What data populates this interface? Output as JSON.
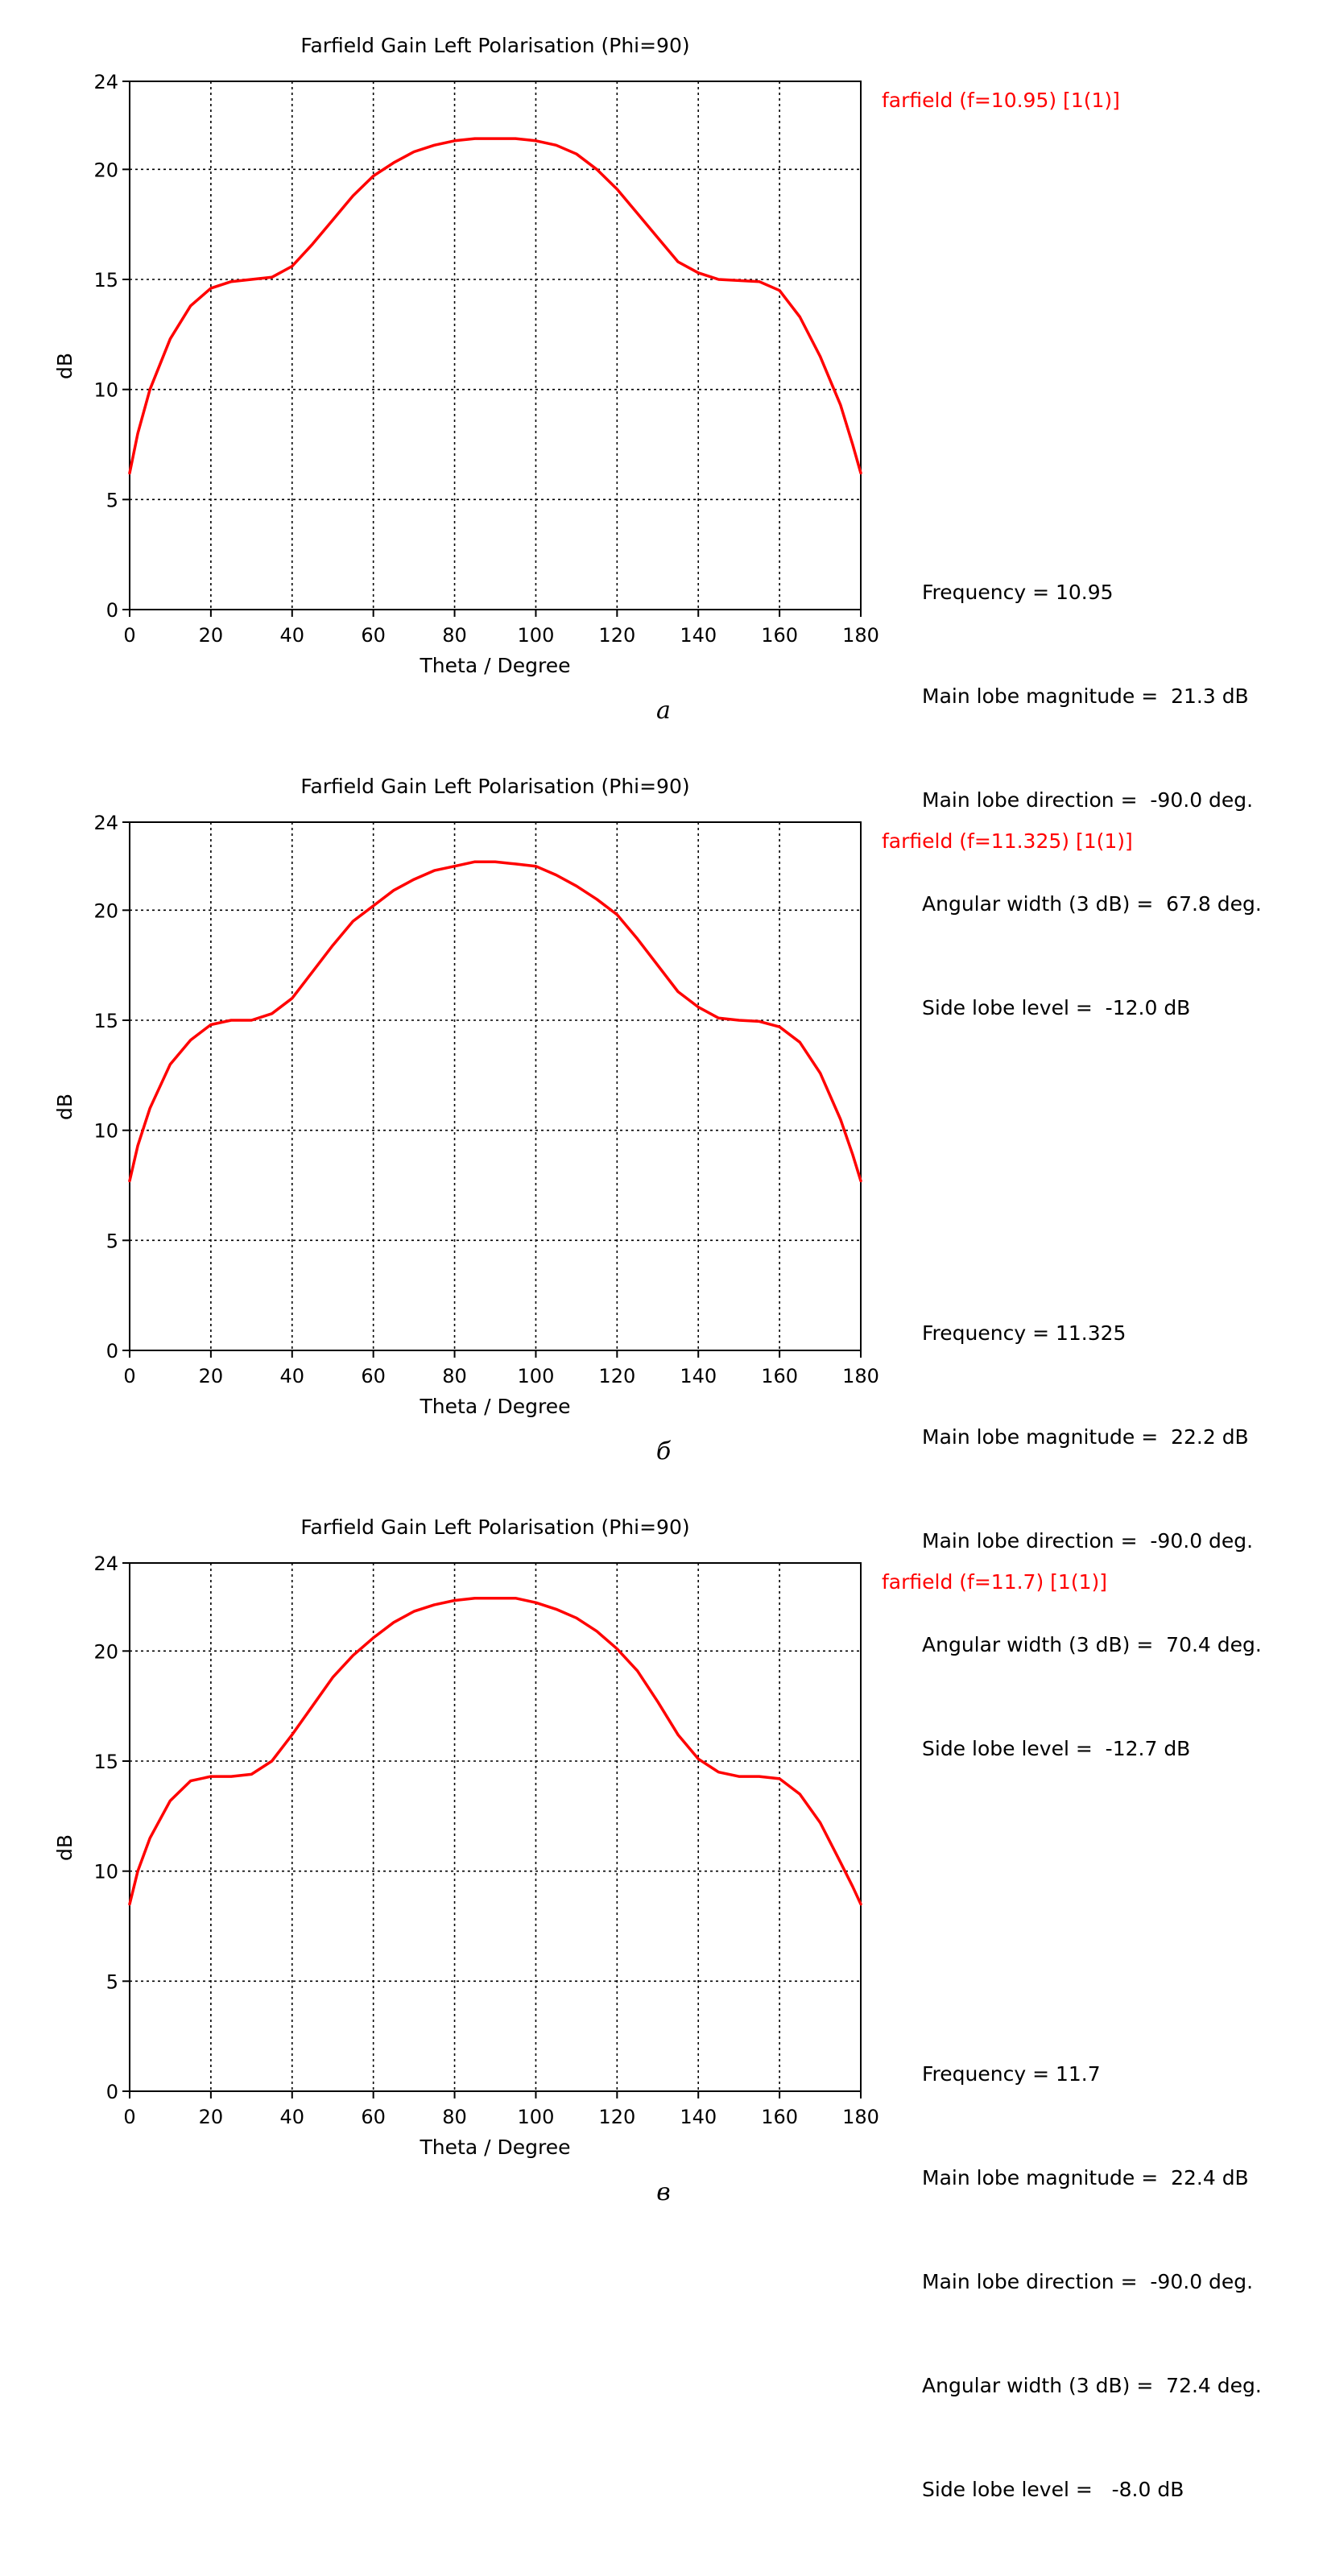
{
  "chart_data": [
    {
      "type": "line",
      "title": "Farfield Gain Left Polarisation (Phi=90)",
      "xlabel": "Theta / Degree",
      "ylabel": "dB",
      "xlim": [
        0,
        180
      ],
      "ylim": [
        0,
        24
      ],
      "xticks": [
        0,
        20,
        40,
        60,
        80,
        100,
        120,
        140,
        160,
        180
      ],
      "yticks": [
        0,
        5,
        10,
        15,
        20,
        24
      ],
      "grid": true,
      "legend_position": "top-right",
      "series": [
        {
          "name": "farfield (f=10.95) [1(1)]",
          "color": "#ff0000",
          "x": [
            0,
            2,
            5,
            10,
            15,
            20,
            25,
            30,
            35,
            40,
            45,
            50,
            55,
            60,
            65,
            70,
            75,
            80,
            85,
            90,
            95,
            100,
            105,
            110,
            115,
            120,
            125,
            130,
            135,
            140,
            145,
            150,
            155,
            160,
            165,
            170,
            175,
            178,
            180
          ],
          "y": [
            6.2,
            8.0,
            10.0,
            12.3,
            13.8,
            14.6,
            14.9,
            15.0,
            15.1,
            15.6,
            16.6,
            17.7,
            18.8,
            19.7,
            20.3,
            20.8,
            21.1,
            21.3,
            21.4,
            21.4,
            21.4,
            21.3,
            21.1,
            20.7,
            20.0,
            19.1,
            18.0,
            16.9,
            15.8,
            15.3,
            15.0,
            14.95,
            14.9,
            14.5,
            13.3,
            11.5,
            9.3,
            7.5,
            6.2
          ]
        }
      ],
      "stats": [
        "Frequency = 10.95",
        "Main lobe magnitude =  21.3 dB",
        "Main lobe direction =  -90.0 deg.",
        "Angular width (3 dB) =  67.8 deg.",
        "Side lobe level =  -12.0 dB"
      ],
      "caption": "a"
    },
    {
      "type": "line",
      "title": "Farfield Gain Left Polarisation (Phi=90)",
      "xlabel": "Theta / Degree",
      "ylabel": "dB",
      "xlim": [
        0,
        180
      ],
      "ylim": [
        0,
        24
      ],
      "xticks": [
        0,
        20,
        40,
        60,
        80,
        100,
        120,
        140,
        160,
        180
      ],
      "yticks": [
        0,
        5,
        10,
        15,
        20,
        24
      ],
      "grid": true,
      "legend_position": "top-right",
      "series": [
        {
          "name": "farfield (f=11.325) [1(1)]",
          "color": "#ff0000",
          "x": [
            0,
            2,
            5,
            10,
            15,
            20,
            25,
            30,
            35,
            40,
            45,
            50,
            55,
            60,
            65,
            70,
            75,
            80,
            85,
            90,
            95,
            100,
            105,
            110,
            115,
            120,
            125,
            130,
            135,
            140,
            145,
            150,
            155,
            160,
            165,
            170,
            175,
            178,
            180
          ],
          "y": [
            7.7,
            9.3,
            11.0,
            13.0,
            14.1,
            14.8,
            15.0,
            15.0,
            15.3,
            16.0,
            17.2,
            18.4,
            19.5,
            20.2,
            20.9,
            21.4,
            21.8,
            22.0,
            22.2,
            22.2,
            22.1,
            22.0,
            21.6,
            21.1,
            20.5,
            19.8,
            18.7,
            17.5,
            16.3,
            15.6,
            15.1,
            15.0,
            14.95,
            14.7,
            14.0,
            12.6,
            10.5,
            8.9,
            7.7
          ]
        }
      ],
      "stats": [
        "Frequency = 11.325",
        "Main lobe magnitude =  22.2 dB",
        "Main lobe direction =  -90.0 deg.",
        "Angular width (3 dB) =  70.4 deg.",
        "Side lobe level =  -12.7 dB"
      ],
      "caption": "б"
    },
    {
      "type": "line",
      "title": "Farfield Gain Left Polarisation (Phi=90)",
      "xlabel": "Theta / Degree",
      "ylabel": "dB",
      "xlim": [
        0,
        180
      ],
      "ylim": [
        0,
        24
      ],
      "xticks": [
        0,
        20,
        40,
        60,
        80,
        100,
        120,
        140,
        160,
        180
      ],
      "yticks": [
        0,
        5,
        10,
        15,
        20,
        24
      ],
      "grid": true,
      "legend_position": "top-right",
      "series": [
        {
          "name": "farfield (f=11.7) [1(1)]",
          "color": "#ff0000",
          "x": [
            0,
            2,
            5,
            10,
            15,
            20,
            25,
            30,
            35,
            40,
            45,
            50,
            55,
            60,
            65,
            70,
            75,
            80,
            85,
            90,
            95,
            100,
            105,
            110,
            115,
            120,
            125,
            130,
            135,
            140,
            145,
            150,
            155,
            160,
            165,
            170,
            175,
            178,
            180
          ],
          "y": [
            8.5,
            10.0,
            11.5,
            13.2,
            14.1,
            14.3,
            14.3,
            14.4,
            15.0,
            16.2,
            17.5,
            18.8,
            19.8,
            20.6,
            21.3,
            21.8,
            22.1,
            22.3,
            22.4,
            22.4,
            22.4,
            22.2,
            21.9,
            21.5,
            20.9,
            20.1,
            19.1,
            17.7,
            16.2,
            15.1,
            14.5,
            14.3,
            14.3,
            14.2,
            13.5,
            12.2,
            10.4,
            9.3,
            8.5
          ]
        }
      ],
      "stats": [
        "Frequency = 11.7",
        "Main lobe magnitude =  22.4 dB",
        "Main lobe direction =  -90.0 deg.",
        "Angular width (3 dB) =  72.4 deg.",
        "Side lobe level =   -8.0 dB"
      ],
      "caption": "в"
    }
  ]
}
